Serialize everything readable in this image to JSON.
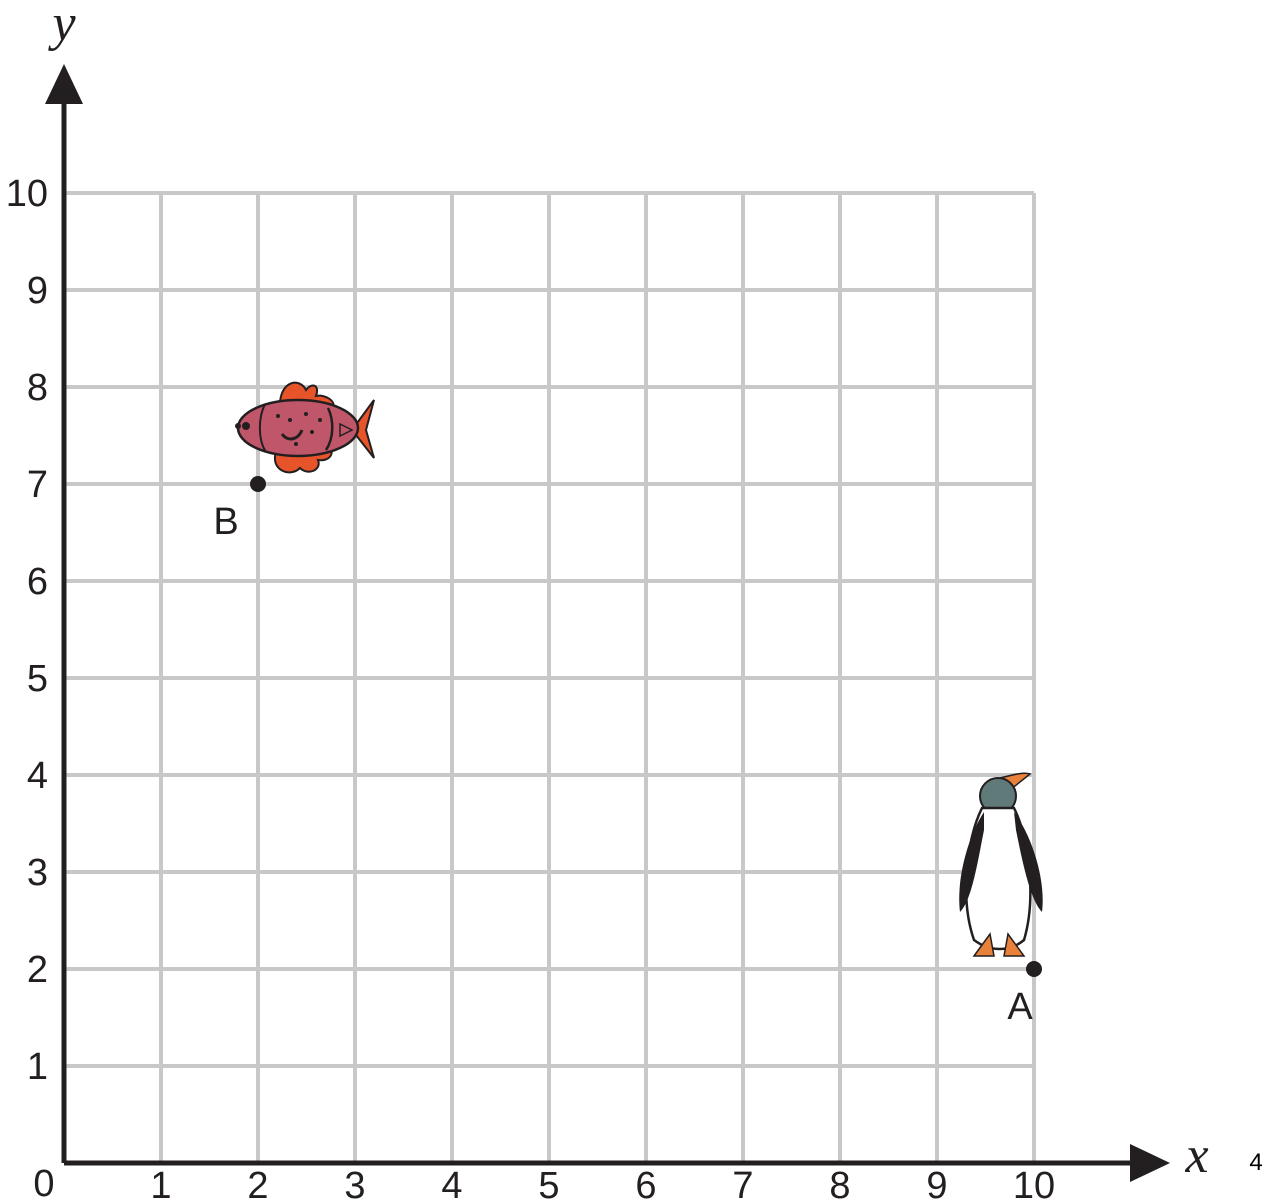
{
  "chart_data": {
    "type": "scatter",
    "xlabel": "x",
    "ylabel": "y",
    "xlim": [
      0,
      10
    ],
    "ylim": [
      0,
      10
    ],
    "origin_label": "0",
    "x_ticks": [
      "1",
      "2",
      "3",
      "4",
      "5",
      "6",
      "7",
      "8",
      "9",
      "10"
    ],
    "y_ticks": [
      "1",
      "2",
      "3",
      "4",
      "5",
      "6",
      "7",
      "8",
      "9",
      "10"
    ],
    "grid": true,
    "points": [
      {
        "label": "A",
        "x": 10,
        "y": 2,
        "icon": "penguin-icon"
      },
      {
        "label": "B",
        "x": 2,
        "y": 7,
        "icon": "fish-icon"
      }
    ]
  },
  "page_number": "4",
  "colors": {
    "grid": "#c8c8c8",
    "axis": "#231f20",
    "fish_body": "#c0566a",
    "fish_fins": "#e8542a",
    "penguin_head": "#5f7a78",
    "penguin_feet": "#e8823a"
  }
}
